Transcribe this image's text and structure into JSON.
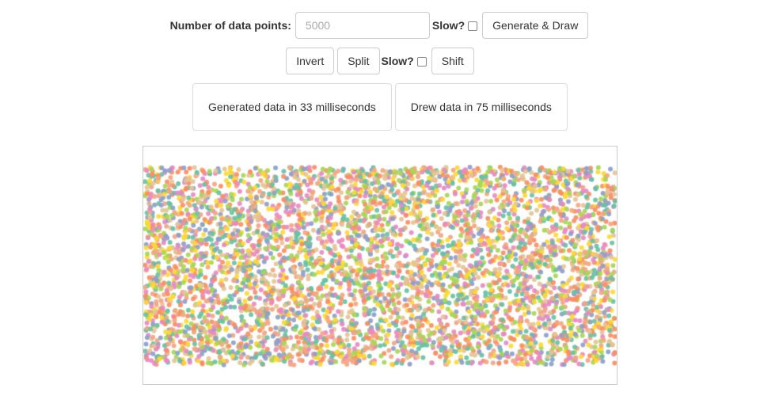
{
  "controls": {
    "points_label": "Number of data points:",
    "points_placeholder": "5000",
    "points_value": "",
    "slow_label_1": "Slow?",
    "generate_label": "Generate & Draw",
    "invert_label": "Invert",
    "split_label": "Split",
    "slow_label_2": "Slow?",
    "shift_label": "Shift"
  },
  "stats": {
    "generated": "Generated data in 33 milliseconds",
    "drew": "Drew data in 75 milliseconds"
  },
  "plot": {
    "point_count": 5000,
    "palette": [
      "#f4a582",
      "#e78ac3",
      "#a6d854",
      "#ffd92f",
      "#8da0cb",
      "#66c2a5",
      "#fc8d62",
      "#e5c494"
    ]
  }
}
